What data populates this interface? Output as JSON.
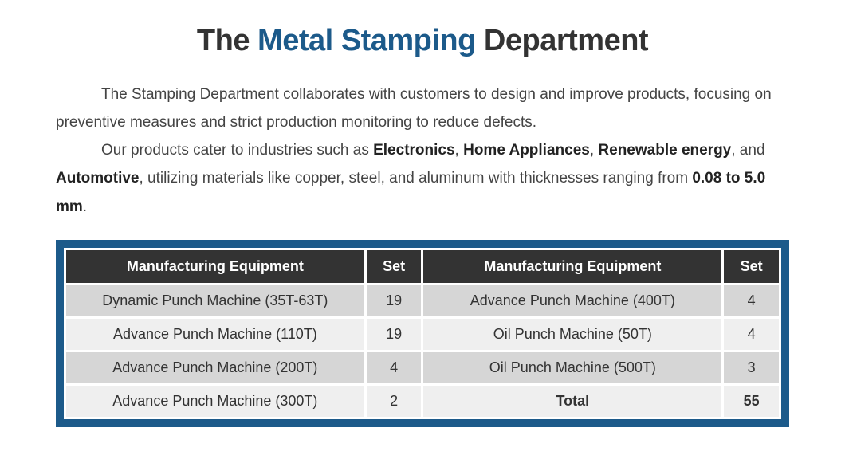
{
  "title": {
    "part1": "The ",
    "accent": "Metal Stamping",
    "part2": " Department"
  },
  "paragraphs": {
    "p1": "The Stamping Department collaborates with customers to design and improve products, focusing on preventive measures and strict production monitoring to reduce defects.",
    "p2_a": "Our products cater to industries such as ",
    "p2_b1": "Electronics",
    "p2_c1": ", ",
    "p2_b2": "Home Appliances",
    "p2_c2": ", ",
    "p2_b3": "Renewable energy",
    "p2_c3": ", and ",
    "p2_b4": "Automotive",
    "p2_d": ", utilizing materials like copper, steel, and aluminum with thicknesses ranging from ",
    "p2_b5": "0.08 to 5.0 mm",
    "p2_e": "."
  },
  "table": {
    "headers": {
      "eq": "Manufacturing Equipment",
      "set": "Set"
    },
    "rows": [
      {
        "l_eq": "Dynamic Punch Machine (35T-63T)",
        "l_set": "19",
        "r_eq": "Advance Punch Machine (400T)",
        "r_set": "4"
      },
      {
        "l_eq": "Advance Punch Machine (110T)",
        "l_set": "19",
        "r_eq": "Oil Punch Machine (50T)",
        "r_set": "4"
      },
      {
        "l_eq": "Advance Punch Machine (200T)",
        "l_set": "4",
        "r_eq": "Oil Punch Machine (500T)",
        "r_set": "3"
      },
      {
        "l_eq": "Advance Punch Machine (300T)",
        "l_set": "2",
        "r_eq": "Total",
        "r_set": "55"
      }
    ],
    "colors": {
      "frame_border": "#1c5a8a",
      "header_bg": "#333333",
      "header_fg": "#ffffff",
      "row_odd_bg": "#d6d6d6",
      "row_even_bg": "#efefef",
      "cell_border": "#ffffff"
    }
  }
}
